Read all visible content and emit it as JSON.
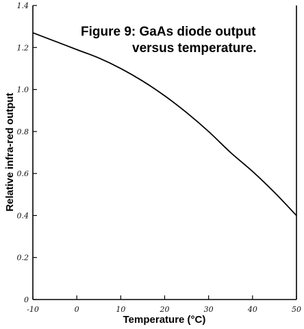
{
  "chart_data": {
    "type": "line",
    "title_line1": "Figure 9: GaAs diode output",
    "title_line2": "versus temperature.",
    "xlabel": "Temperature (°C)",
    "ylabel": "Relative infra-red output",
    "xlim": [
      -10,
      50
    ],
    "ylim": [
      0,
      1.4
    ],
    "x_ticks": [
      -10,
      0,
      10,
      20,
      30,
      40,
      50
    ],
    "x_tick_labels": [
      "-10",
      "0",
      "10",
      "20",
      "30",
      "40",
      "50"
    ],
    "y_ticks": [
      0,
      0.2,
      0.4,
      0.6,
      0.8,
      1.0,
      1.2,
      1.4
    ],
    "y_tick_labels": [
      "0",
      "0.2",
      "0.4",
      "0.6",
      "0.8",
      "1.0",
      "1.2",
      "1.4"
    ],
    "grid": false,
    "series": [
      {
        "x": [
          -10,
          -5,
          0,
          5,
          10,
          15,
          20,
          25,
          30,
          35,
          40,
          45,
          50
        ],
        "y": [
          1.27,
          1.23,
          1.19,
          1.15,
          1.1,
          1.04,
          0.97,
          0.89,
          0.8,
          0.7,
          0.61,
          0.51,
          0.4
        ]
      }
    ]
  }
}
